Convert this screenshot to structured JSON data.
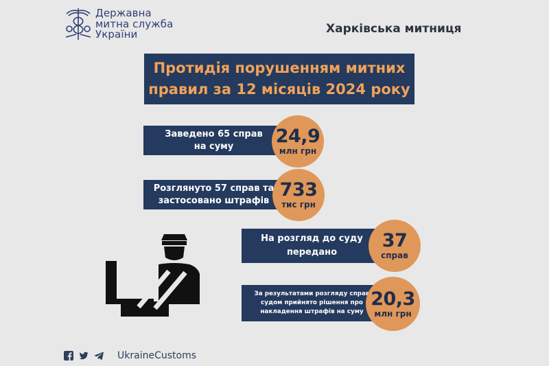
{
  "logo": {
    "line1": "Державна",
    "line2": "митна служба",
    "line3": "України"
  },
  "customs_office": "Харківська митниця",
  "title": {
    "line1": "Протидія порушенням митних",
    "line2": "правил за 12 місяців 2024 року"
  },
  "stats": [
    {
      "text1": "Заведено 65 справ",
      "text2": "на суму",
      "value": "24,9",
      "unit": "млн грн"
    },
    {
      "text1": "Розглянуто 57 справ та",
      "text2": "застосовано штрафів",
      "value": "733",
      "unit": "тис грн"
    },
    {
      "text1": "На розгляд до суду",
      "text2": "передано",
      "value": "37",
      "unit": "справ"
    },
    {
      "text1": "За результатами розгляду справ",
      "text2": "судом прийнято рішення про",
      "text3": "накладення штрафів на суму",
      "value": "20,3",
      "unit": "млн грн"
    }
  ],
  "footer": {
    "icons": [
      "facebook-icon",
      "twitter-icon",
      "telegram-icon"
    ],
    "handle": "UkraineCustoms"
  },
  "colors": {
    "background": "#e8e8e8",
    "navy": "#243a5e",
    "orange": "#e0975a",
    "title_text": "#f0a25a"
  }
}
